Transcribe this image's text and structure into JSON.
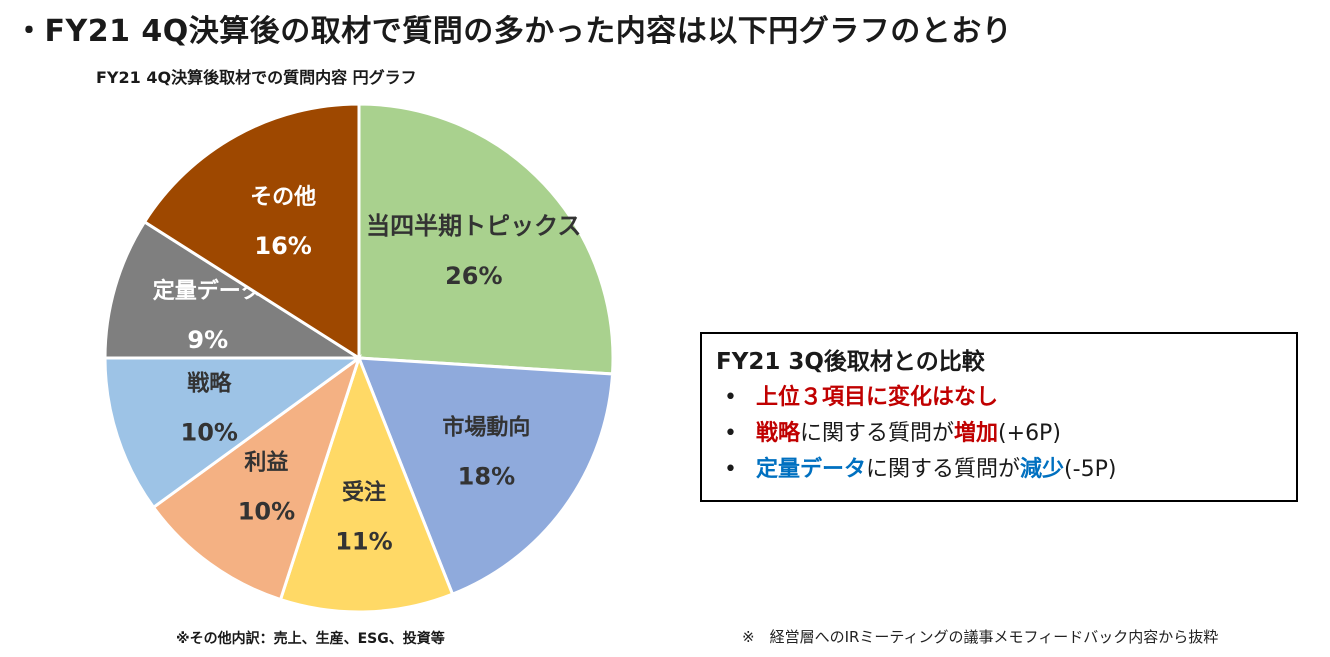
{
  "page_title": "・FY21 4Q決算後の取材で質問の多かった内容は以下円グラフのとおり",
  "chart_data": {
    "type": "pie",
    "title": "FY21 4Q決算後取材での質問内容 円グラフ",
    "slices": [
      {
        "label": "当四半期トピックス",
        "value": 26,
        "value_label": "26%",
        "color": "#a9d18e"
      },
      {
        "label": "市場動向",
        "value": 18,
        "value_label": "18%",
        "color": "#8faadc"
      },
      {
        "label": "受注",
        "value": 11,
        "value_label": "11%",
        "color": "#ffd966"
      },
      {
        "label": "利益",
        "value": 10,
        "value_label": "10%",
        "color": "#f4b183"
      },
      {
        "label": "戦略",
        "value": 10,
        "value_label": "10%",
        "color": "#9dc3e6"
      },
      {
        "label": "定量データ",
        "value": 9,
        "value_label": "9%",
        "color": "#7f7f7f"
      },
      {
        "label": "その他",
        "value": 16,
        "value_label": "16%",
        "color": "#9e4800"
      }
    ]
  },
  "comparison": {
    "title": "FY21 3Q後取材との比較",
    "items": [
      {
        "emph": "上位３項目に変化はなし",
        "rest": "",
        "emph2": "",
        "tail": ""
      },
      {
        "emph": "戦略",
        "rest": "に関する質問が",
        "emph2": "増加",
        "tail": "(+6P)"
      },
      {
        "emph": "定量データ",
        "rest": "に関する質問が",
        "emph2": "減少",
        "tail": "(-5P)"
      }
    ]
  },
  "note_other": "※その他内訳：売上、生産、ESG、投資等",
  "note_source": "※　経営層へのIRミーティングの議事メモフィードバック内容から抜粋"
}
